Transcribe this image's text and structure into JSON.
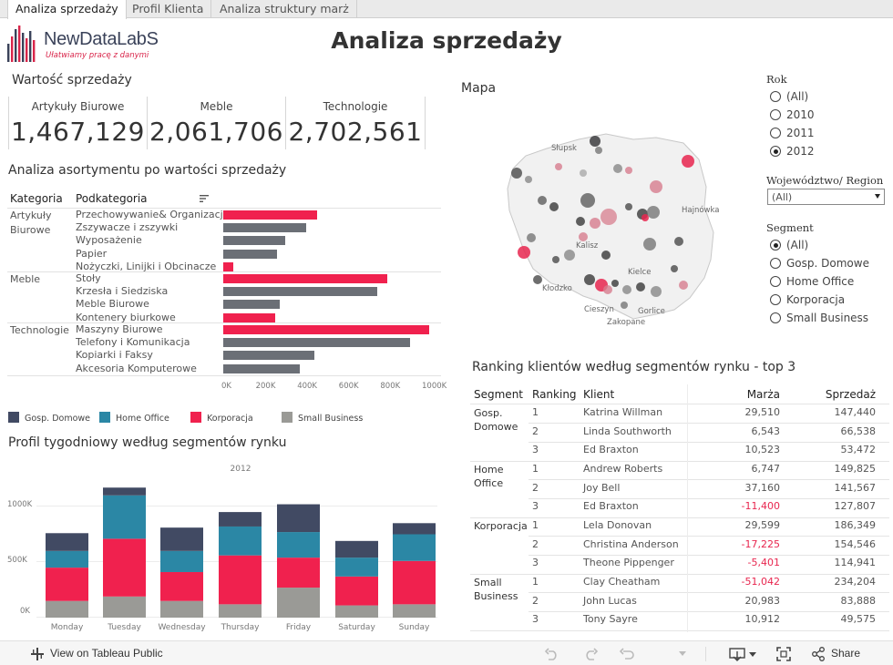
{
  "tabs": [
    "Analiza sprzedaży",
    "Profil Klienta",
    "Analiza struktury marż"
  ],
  "logo": {
    "name": "NewDataLabS",
    "tagline": "Ułatwiamy pracę z danymi"
  },
  "title": "Analiza sprzedaży",
  "kpi": {
    "section_title": "Wartość sprzedaży",
    "items": [
      {
        "label": "Artykuły Biurowe",
        "value": "1,467,129"
      },
      {
        "label": "Meble",
        "value": "2,061,706"
      },
      {
        "label": "Technologie",
        "value": "2,702,561"
      }
    ]
  },
  "assortment": {
    "section_title": "Analiza asortymentu po wartości sprzedaży",
    "col_category": "Kategoria",
    "col_subcategory": "Podkategoria",
    "categories": [
      {
        "name": "Artykuły Biurowe",
        "items": [
          {
            "label": "Przechowywanie& Organizacja",
            "value": 450000,
            "color": "red"
          },
          {
            "label": "Zszywacze i zszywki",
            "value": 400000,
            "color": "grey"
          },
          {
            "label": "Wyposażenie",
            "value": 300000,
            "color": "grey"
          },
          {
            "label": "Papier",
            "value": 260000,
            "color": "grey"
          },
          {
            "label": "Nożyczki, Linijki i Obcinacze",
            "value": 50000,
            "color": "red"
          }
        ]
      },
      {
        "name": "Meble",
        "items": [
          {
            "label": "Stoły",
            "value": 790000,
            "color": "red"
          },
          {
            "label": "Krzesła i Siedziska",
            "value": 740000,
            "color": "grey"
          },
          {
            "label": "Meble Biurowe",
            "value": 270000,
            "color": "grey"
          },
          {
            "label": "Kontenery biurkowe",
            "value": 250000,
            "color": "red"
          }
        ]
      },
      {
        "name": "Technologie",
        "items": [
          {
            "label": "Maszyny Biurowe",
            "value": 990000,
            "color": "red"
          },
          {
            "label": "Telefony i Komunikacja",
            "value": 900000,
            "color": "grey"
          },
          {
            "label": "Kopiarki i Faksy",
            "value": 440000,
            "color": "grey"
          },
          {
            "label": "Akcesoria Komputerowe",
            "value": 370000,
            "color": "grey"
          }
        ]
      }
    ],
    "axis_ticks": [
      "0K",
      "200K",
      "400K",
      "600K",
      "800K",
      "1000K"
    ],
    "axis_max": 1000000
  },
  "legend": [
    {
      "label": "Gosp. Domowe",
      "color": "#414a63"
    },
    {
      "label": "Home Office",
      "color": "#2b87a5"
    },
    {
      "label": "Korporacja",
      "color": "#f0214e"
    },
    {
      "label": "Small Business",
      "color": "#9a9a96"
    }
  ],
  "weekly": {
    "section_title": "Profil tygodniowy według segmentów rynku",
    "year_label": "2012",
    "y_ticks": [
      "1000K",
      "500K",
      "0K"
    ]
  },
  "chart_data": {
    "type": "bar",
    "title": "Profil tygodniowy według segmentów rynku",
    "subtitle": "2012",
    "xlabel": "",
    "ylabel": "",
    "ylim": [
      0,
      1200000
    ],
    "categories": [
      "Monday",
      "Tuesday",
      "Wednesday",
      "Thursday",
      "Friday",
      "Saturday",
      "Sunday"
    ],
    "series": [
      {
        "name": "Small Business",
        "values": [
          150000,
          190000,
          150000,
          120000,
          270000,
          110000,
          120000
        ]
      },
      {
        "name": "Korporacja",
        "values": [
          300000,
          520000,
          260000,
          440000,
          270000,
          260000,
          390000
        ]
      },
      {
        "name": "Home Office",
        "values": [
          150000,
          390000,
          190000,
          260000,
          230000,
          170000,
          240000
        ]
      },
      {
        "name": "Gosp. Domowe",
        "values": [
          160000,
          70000,
          210000,
          130000,
          250000,
          150000,
          100000
        ]
      }
    ]
  },
  "map": {
    "title": "Mapa",
    "labels": [
      "Słupsk",
      "Hajnówka",
      "Kalisz",
      "Kielce",
      "Kłodzko",
      "Cieszyn",
      "Gorlice",
      "Zakopane"
    ]
  },
  "filters": {
    "year": {
      "title": "Rok",
      "options": [
        "(All)",
        "2010",
        "2011",
        "2012"
      ],
      "selected": "2012"
    },
    "region": {
      "title": "Województwo/ Region",
      "value": "(All)"
    },
    "segment": {
      "title": "Segment",
      "options": [
        "(All)",
        "Gosp. Domowe",
        "Home Office",
        "Korporacja",
        "Small Business"
      ],
      "selected": "(All)"
    }
  },
  "ranking": {
    "section_title": "Ranking klientów według segmentów rynku - top 3",
    "headers": [
      "Segment",
      "Ranking",
      "Klient",
      "Marża",
      "Sprzedaż"
    ],
    "groups": [
      {
        "segment": "Gosp. Domowe",
        "rows": [
          {
            "rank": "1",
            "client": "Katrina Willman",
            "margin": "29,510",
            "sales": "147,440"
          },
          {
            "rank": "2",
            "client": "Linda Southworth",
            "margin": "6,543",
            "sales": "66,538"
          },
          {
            "rank": "3",
            "client": "Ed Braxton",
            "margin": "10,523",
            "sales": "53,472"
          }
        ]
      },
      {
        "segment": "Home Office",
        "rows": [
          {
            "rank": "1",
            "client": "Andrew Roberts",
            "margin": "6,747",
            "sales": "149,825"
          },
          {
            "rank": "2",
            "client": "Joy Bell",
            "margin": "37,160",
            "sales": "141,567"
          },
          {
            "rank": "3",
            "client": "Ed Braxton",
            "margin": "-11,400",
            "sales": "127,807"
          }
        ]
      },
      {
        "segment": "Korporacja",
        "rows": [
          {
            "rank": "1",
            "client": "Lela Donovan",
            "margin": "29,599",
            "sales": "186,349"
          },
          {
            "rank": "2",
            "client": "Christina Anderson",
            "margin": "-17,225",
            "sales": "154,546"
          },
          {
            "rank": "3",
            "client": "Theone Pippenger",
            "margin": "-5,401",
            "sales": "114,941"
          }
        ]
      },
      {
        "segment": "Small Business",
        "rows": [
          {
            "rank": "1",
            "client": "Clay Cheatham",
            "margin": "-51,042",
            "sales": "234,204"
          },
          {
            "rank": "2",
            "client": "John Lucas",
            "margin": "20,983",
            "sales": "83,888"
          },
          {
            "rank": "3",
            "client": "Tony Sayre",
            "margin": "10,912",
            "sales": "49,575"
          }
        ]
      }
    ]
  },
  "footer": {
    "view_label": "View on Tableau Public",
    "share_label": "Share"
  },
  "colors": {
    "red": "#f0214e",
    "grey": "#6b6f76"
  }
}
